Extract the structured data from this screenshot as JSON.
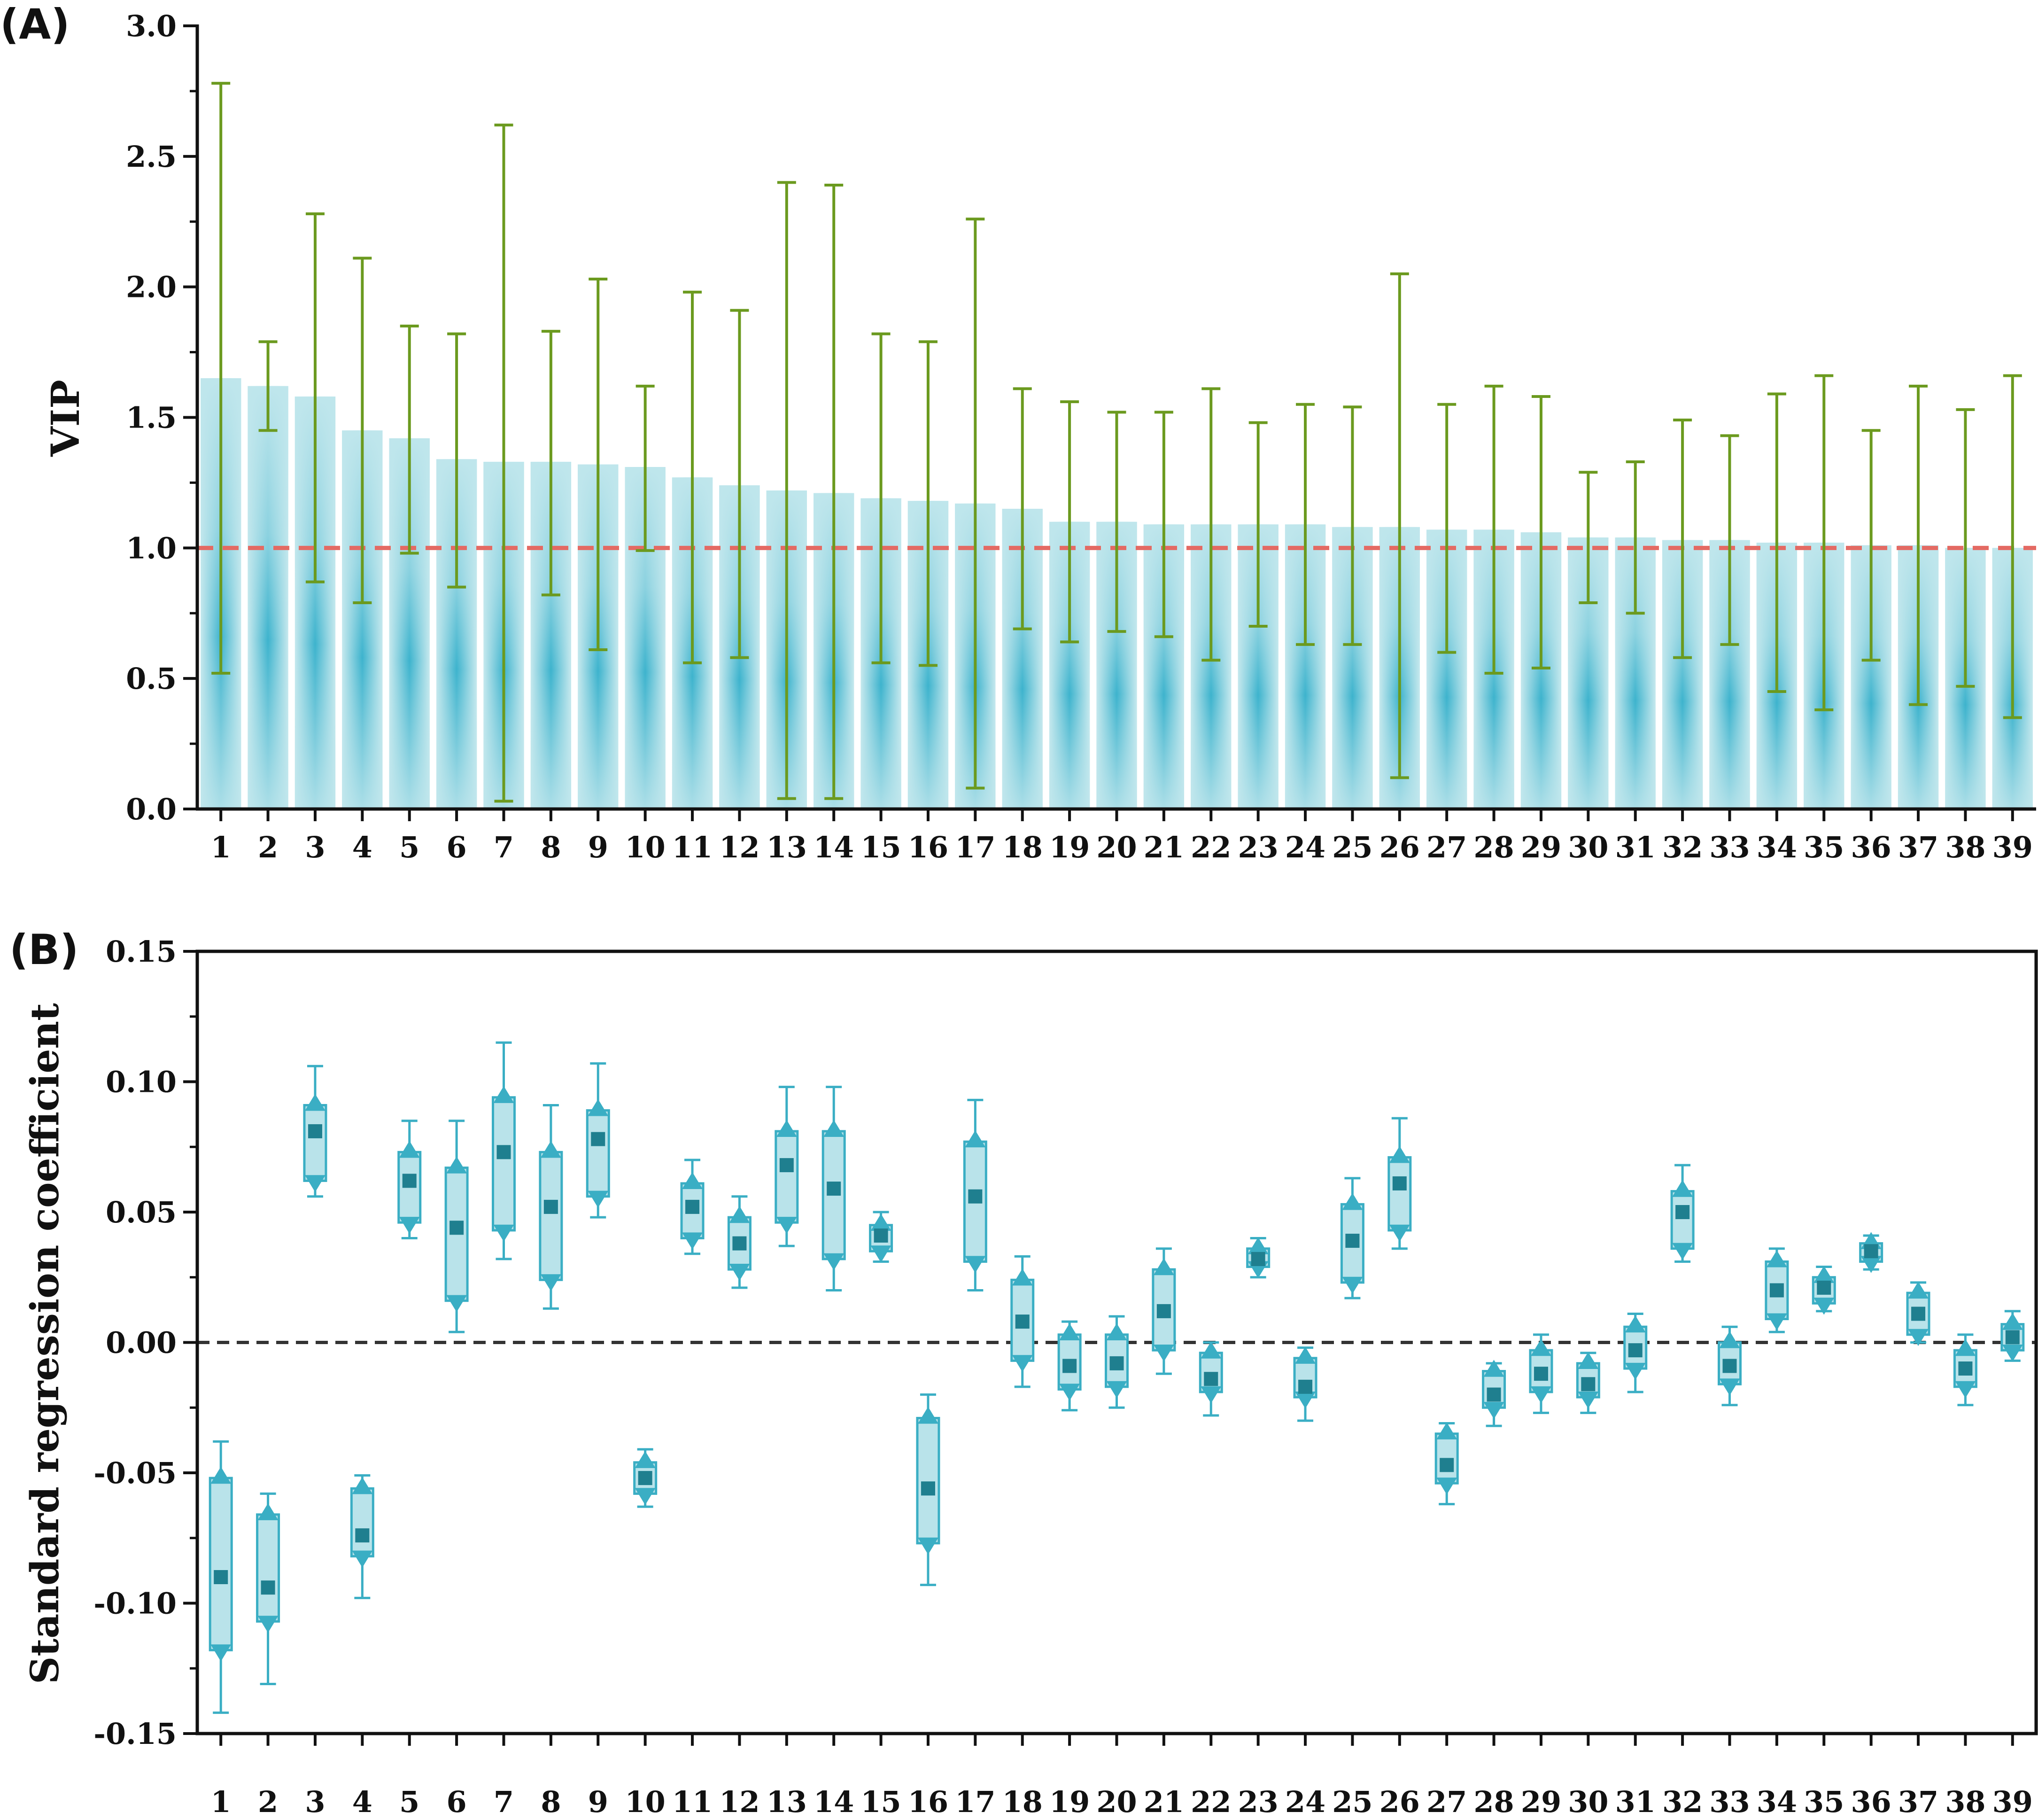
{
  "colors": {
    "bar_light": "#bfe6ec",
    "bar_dark": "#2eaecb",
    "errorbar": "#6b9a1f",
    "threshold_line": "#e46a63",
    "box_fill": "#b9e3ea",
    "box_edge": "#3aaec4",
    "marker_tri": "#3aaec4",
    "marker_mean": "#1f7f8f",
    "zero_line": "#333333",
    "axis": "#111111"
  },
  "chart_data": [
    {
      "panel_label": "(A)",
      "type": "bar",
      "ylabel": "VIP",
      "xlabel": "",
      "ylim": [
        0,
        3.0
      ],
      "yticks": [
        "0.0",
        "0.5",
        "1.0",
        "1.5",
        "2.0",
        "2.5",
        "3.0"
      ],
      "categories": [
        "1",
        "2",
        "3",
        "4",
        "5",
        "6",
        "7",
        "8",
        "9",
        "10",
        "11",
        "12",
        "13",
        "14",
        "15",
        "16",
        "17",
        "18",
        "19",
        "20",
        "21",
        "22",
        "23",
        "24",
        "25",
        "26",
        "27",
        "28",
        "29",
        "30",
        "31",
        "32",
        "33",
        "34",
        "35",
        "36",
        "37",
        "38",
        "39"
      ],
      "values": [
        1.65,
        1.62,
        1.58,
        1.45,
        1.42,
        1.34,
        1.33,
        1.33,
        1.32,
        1.31,
        1.27,
        1.24,
        1.22,
        1.21,
        1.19,
        1.18,
        1.17,
        1.15,
        1.1,
        1.1,
        1.09,
        1.09,
        1.09,
        1.09,
        1.08,
        1.08,
        1.07,
        1.07,
        1.06,
        1.04,
        1.04,
        1.03,
        1.03,
        1.02,
        1.02,
        1.01,
        1.01,
        1.0,
        1.0
      ],
      "err_low": [
        0.52,
        1.45,
        0.87,
        0.79,
        0.98,
        0.85,
        0.03,
        0.82,
        0.61,
        0.99,
        0.56,
        0.58,
        0.04,
        0.04,
        0.56,
        0.55,
        0.08,
        0.69,
        0.64,
        0.68,
        0.66,
        0.57,
        0.7,
        0.63,
        0.63,
        0.12,
        0.6,
        0.52,
        0.54,
        0.79,
        0.75,
        0.58,
        0.63,
        0.45,
        0.38,
        0.57,
        0.4,
        0.47,
        0.35
      ],
      "err_high": [
        2.78,
        1.79,
        2.28,
        2.11,
        1.85,
        1.82,
        2.62,
        1.83,
        2.03,
        1.62,
        1.98,
        1.91,
        2.4,
        2.39,
        1.82,
        1.79,
        2.26,
        1.61,
        1.56,
        1.52,
        1.52,
        1.61,
        1.48,
        1.55,
        1.54,
        2.05,
        1.55,
        1.62,
        1.58,
        1.29,
        1.33,
        1.49,
        1.43,
        1.59,
        1.66,
        1.45,
        1.62,
        1.53,
        1.66
      ],
      "threshold": 1.0
    },
    {
      "panel_label": "(B)",
      "type": "box",
      "ylabel": "Standard regression coefficient",
      "xlabel": "",
      "ylim": [
        -0.15,
        0.15
      ],
      "yticks": [
        "-0.15",
        "-0.10",
        "-0.05",
        "0.00",
        "0.05",
        "0.10",
        "0.15"
      ],
      "categories": [
        "1",
        "2",
        "3",
        "4",
        "5",
        "6",
        "7",
        "8",
        "9",
        "10",
        "11",
        "12",
        "13",
        "14",
        "15",
        "16",
        "17",
        "18",
        "19",
        "20",
        "21",
        "22",
        "23",
        "24",
        "25",
        "26",
        "27",
        "28",
        "29",
        "30",
        "31",
        "32",
        "33",
        "34",
        "35",
        "36",
        "37",
        "38",
        "39"
      ],
      "whisker_low": [
        -0.142,
        -0.131,
        0.056,
        -0.098,
        0.04,
        0.004,
        0.032,
        0.013,
        0.048,
        -0.063,
        0.034,
        0.021,
        0.037,
        0.02,
        0.031,
        -0.093,
        0.02,
        -0.017,
        -0.026,
        -0.025,
        -0.012,
        -0.028,
        0.025,
        -0.03,
        0.017,
        0.036,
        -0.062,
        -0.032,
        -0.027,
        -0.027,
        -0.019,
        0.031,
        -0.024,
        0.004,
        0.012,
        0.028,
        0.0,
        -0.024,
        -0.007
      ],
      "q1": [
        -0.118,
        -0.107,
        0.062,
        -0.082,
        0.046,
        0.016,
        0.043,
        0.024,
        0.056,
        -0.058,
        0.04,
        0.028,
        0.046,
        0.032,
        0.035,
        -0.077,
        0.031,
        -0.007,
        -0.018,
        -0.017,
        -0.003,
        -0.019,
        0.029,
        -0.021,
        0.023,
        0.043,
        -0.054,
        -0.025,
        -0.019,
        -0.021,
        -0.01,
        0.036,
        -0.016,
        0.009,
        0.015,
        0.031,
        0.003,
        -0.017,
        -0.003
      ],
      "mean": [
        -0.09,
        -0.094,
        0.081,
        -0.074,
        0.062,
        0.044,
        0.073,
        0.052,
        0.078,
        -0.052,
        0.052,
        0.038,
        0.068,
        0.059,
        0.041,
        -0.056,
        0.056,
        0.008,
        -0.009,
        -0.008,
        0.012,
        -0.014,
        0.032,
        -0.017,
        0.039,
        0.061,
        -0.047,
        -0.02,
        -0.012,
        -0.016,
        -0.003,
        0.05,
        -0.009,
        0.02,
        0.021,
        0.035,
        0.011,
        -0.01,
        0.002
      ],
      "q3": [
        -0.052,
        -0.066,
        0.091,
        -0.056,
        0.073,
        0.067,
        0.094,
        0.073,
        0.089,
        -0.046,
        0.061,
        0.048,
        0.081,
        0.081,
        0.045,
        -0.029,
        0.077,
        0.024,
        0.003,
        0.003,
        0.028,
        -0.004,
        0.036,
        -0.006,
        0.053,
        0.071,
        -0.035,
        -0.011,
        -0.003,
        -0.008,
        0.006,
        0.058,
        0.0,
        0.031,
        0.025,
        0.038,
        0.019,
        -0.003,
        0.007
      ],
      "whisker_high": [
        -0.038,
        -0.058,
        0.106,
        -0.051,
        0.085,
        0.085,
        0.115,
        0.091,
        0.107,
        -0.041,
        0.07,
        0.056,
        0.098,
        0.098,
        0.05,
        -0.02,
        0.093,
        0.033,
        0.008,
        0.01,
        0.036,
        0.0,
        0.04,
        -0.002,
        0.063,
        0.086,
        -0.031,
        -0.008,
        0.003,
        -0.004,
        0.011,
        0.068,
        0.006,
        0.036,
        0.029,
        0.041,
        0.023,
        0.003,
        0.012
      ],
      "reference_line": 0.0
    }
  ]
}
